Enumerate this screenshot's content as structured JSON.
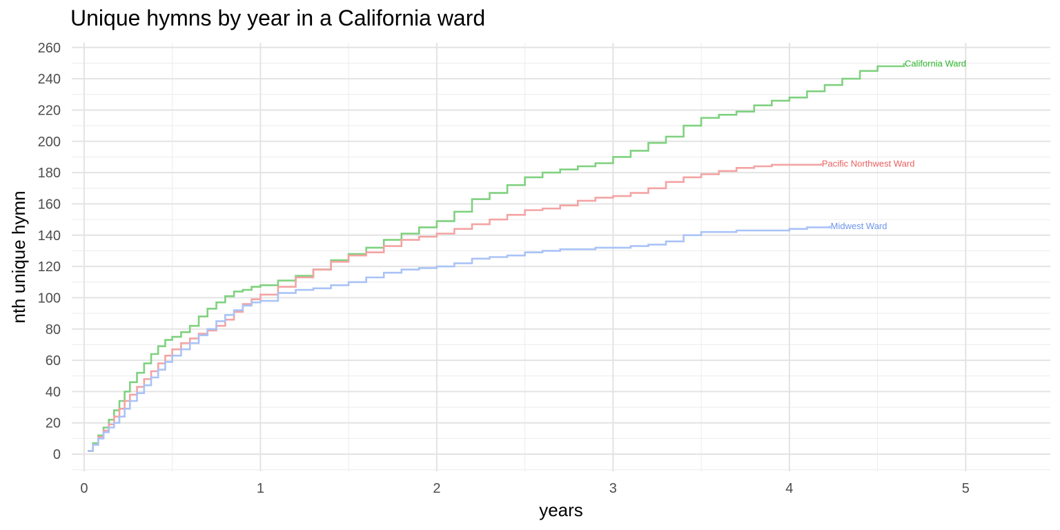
{
  "chart_data": {
    "type": "line",
    "title": "Unique hymns by year in a California ward",
    "xlabel": "years",
    "ylabel": "nth unique hymn",
    "xlim": [
      -0.07,
      5.48
    ],
    "ylim": [
      -11,
      263
    ],
    "x_ticks": [
      0,
      1,
      2,
      3,
      4,
      5
    ],
    "y_ticks": [
      0,
      20,
      40,
      60,
      80,
      100,
      120,
      140,
      160,
      180,
      200,
      220,
      240,
      260
    ],
    "grid": true,
    "legend": "none (labels at line ends)",
    "series": [
      {
        "name": "California Ward",
        "color": "#7fd17f",
        "label_color": "#2bb52b",
        "x": [
          0.02,
          0.05,
          0.08,
          0.11,
          0.14,
          0.17,
          0.2,
          0.23,
          0.26,
          0.3,
          0.34,
          0.38,
          0.42,
          0.46,
          0.5,
          0.55,
          0.6,
          0.65,
          0.7,
          0.75,
          0.8,
          0.85,
          0.9,
          0.95,
          1.0,
          1.1,
          1.2,
          1.3,
          1.4,
          1.5,
          1.6,
          1.7,
          1.8,
          1.9,
          2.0,
          2.1,
          2.2,
          2.3,
          2.4,
          2.5,
          2.6,
          2.7,
          2.8,
          2.9,
          3.0,
          3.1,
          3.2,
          3.3,
          3.4,
          3.5,
          3.6,
          3.7,
          3.8,
          3.9,
          4.0,
          4.1,
          4.2,
          4.3,
          4.4,
          4.5,
          4.65
        ],
        "y": [
          2,
          7,
          12,
          17,
          22,
          28,
          34,
          40,
          46,
          52,
          58,
          64,
          69,
          73,
          75,
          78,
          82,
          88,
          93,
          97,
          101,
          104,
          105,
          107,
          108,
          111,
          114,
          118,
          124,
          128,
          132,
          137,
          141,
          145,
          149,
          155,
          163,
          167,
          172,
          177,
          180,
          182,
          184,
          186,
          190,
          194,
          199,
          203,
          210,
          215,
          217,
          219,
          223,
          226,
          228,
          232,
          236,
          240,
          245,
          248,
          250
        ]
      },
      {
        "name": "Pacific Northwest Ward",
        "color": "#f4a3a3",
        "label_color": "#e86060",
        "x": [
          0.02,
          0.05,
          0.08,
          0.11,
          0.14,
          0.17,
          0.2,
          0.23,
          0.26,
          0.3,
          0.34,
          0.38,
          0.42,
          0.46,
          0.5,
          0.55,
          0.6,
          0.65,
          0.7,
          0.75,
          0.8,
          0.85,
          0.9,
          0.95,
          1.0,
          1.1,
          1.2,
          1.3,
          1.4,
          1.5,
          1.6,
          1.7,
          1.8,
          1.9,
          2.0,
          2.1,
          2.2,
          2.3,
          2.4,
          2.5,
          2.6,
          2.7,
          2.8,
          2.9,
          3.0,
          3.1,
          3.2,
          3.3,
          3.4,
          3.5,
          3.6,
          3.7,
          3.8,
          3.9,
          4.0,
          4.18
        ],
        "y": [
          2,
          6,
          11,
          15,
          19,
          24,
          29,
          34,
          38,
          43,
          48,
          53,
          58,
          63,
          67,
          71,
          74,
          77,
          79,
          82,
          86,
          91,
          96,
          99,
          102,
          107,
          113,
          118,
          123,
          127,
          129,
          133,
          137,
          139,
          141,
          144,
          147,
          150,
          153,
          156,
          157,
          159,
          162,
          164,
          165,
          167,
          170,
          174,
          177,
          179,
          181,
          183,
          184,
          185,
          185,
          186
        ]
      },
      {
        "name": "Midwest Ward",
        "color": "#a9c2f7",
        "label_color": "#6d95ea",
        "x": [
          0.02,
          0.05,
          0.08,
          0.11,
          0.14,
          0.17,
          0.2,
          0.23,
          0.26,
          0.3,
          0.34,
          0.38,
          0.42,
          0.46,
          0.5,
          0.55,
          0.6,
          0.65,
          0.7,
          0.75,
          0.8,
          0.85,
          0.9,
          0.95,
          1.0,
          1.1,
          1.2,
          1.3,
          1.4,
          1.5,
          1.6,
          1.7,
          1.8,
          1.9,
          2.0,
          2.1,
          2.2,
          2.3,
          2.4,
          2.5,
          2.6,
          2.7,
          2.8,
          2.9,
          3.0,
          3.1,
          3.2,
          3.3,
          3.4,
          3.5,
          3.6,
          3.7,
          3.8,
          3.9,
          4.0,
          4.1,
          4.23
        ],
        "y": [
          2,
          6,
          10,
          14,
          17,
          20,
          24,
          29,
          34,
          39,
          44,
          49,
          54,
          59,
          63,
          67,
          71,
          76,
          80,
          85,
          89,
          92,
          95,
          97,
          98,
          103,
          105,
          106,
          108,
          110,
          113,
          116,
          118,
          119,
          120,
          122,
          125,
          126,
          127,
          129,
          130,
          131,
          131,
          132,
          132,
          133,
          134,
          136,
          140,
          142,
          142,
          143,
          143,
          143,
          144,
          145,
          146
        ]
      }
    ]
  }
}
